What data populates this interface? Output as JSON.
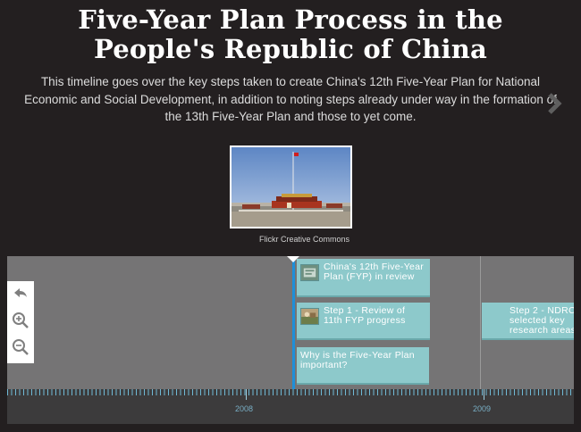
{
  "header": {
    "title_line1": "Five-Year Plan Process in the",
    "title_line2": "People's Republic of China",
    "description": "This timeline goes over the key steps taken to create China's 12th Five-Year Plan for National Economic and Social Development, in addition to noting steps already under way in the formation of the 13th Five-Year Plan and those to yet come."
  },
  "media": {
    "credit": "Flickr Creative Commons"
  },
  "timeline": {
    "events": [
      {
        "label": "China's 12th Five-Year Plan (FYP) in review"
      },
      {
        "label": "Step 1 - Review of 11th FYP progress"
      },
      {
        "label": "Why is the Five-Year Plan important?"
      },
      {
        "label": "Step 2 - NDRC selected key research areas"
      }
    ],
    "years": [
      "2008",
      "2009"
    ]
  },
  "colors": {
    "background": "#231f20",
    "timeline_bg": "#757475",
    "card": "#8dc9cb",
    "active_marker": "#1f8fd8"
  },
  "icons": {
    "next": "chevron-right-icon",
    "back": "back-arrow-icon",
    "zoom_in": "zoom-in-icon",
    "zoom_out": "zoom-out-icon"
  }
}
